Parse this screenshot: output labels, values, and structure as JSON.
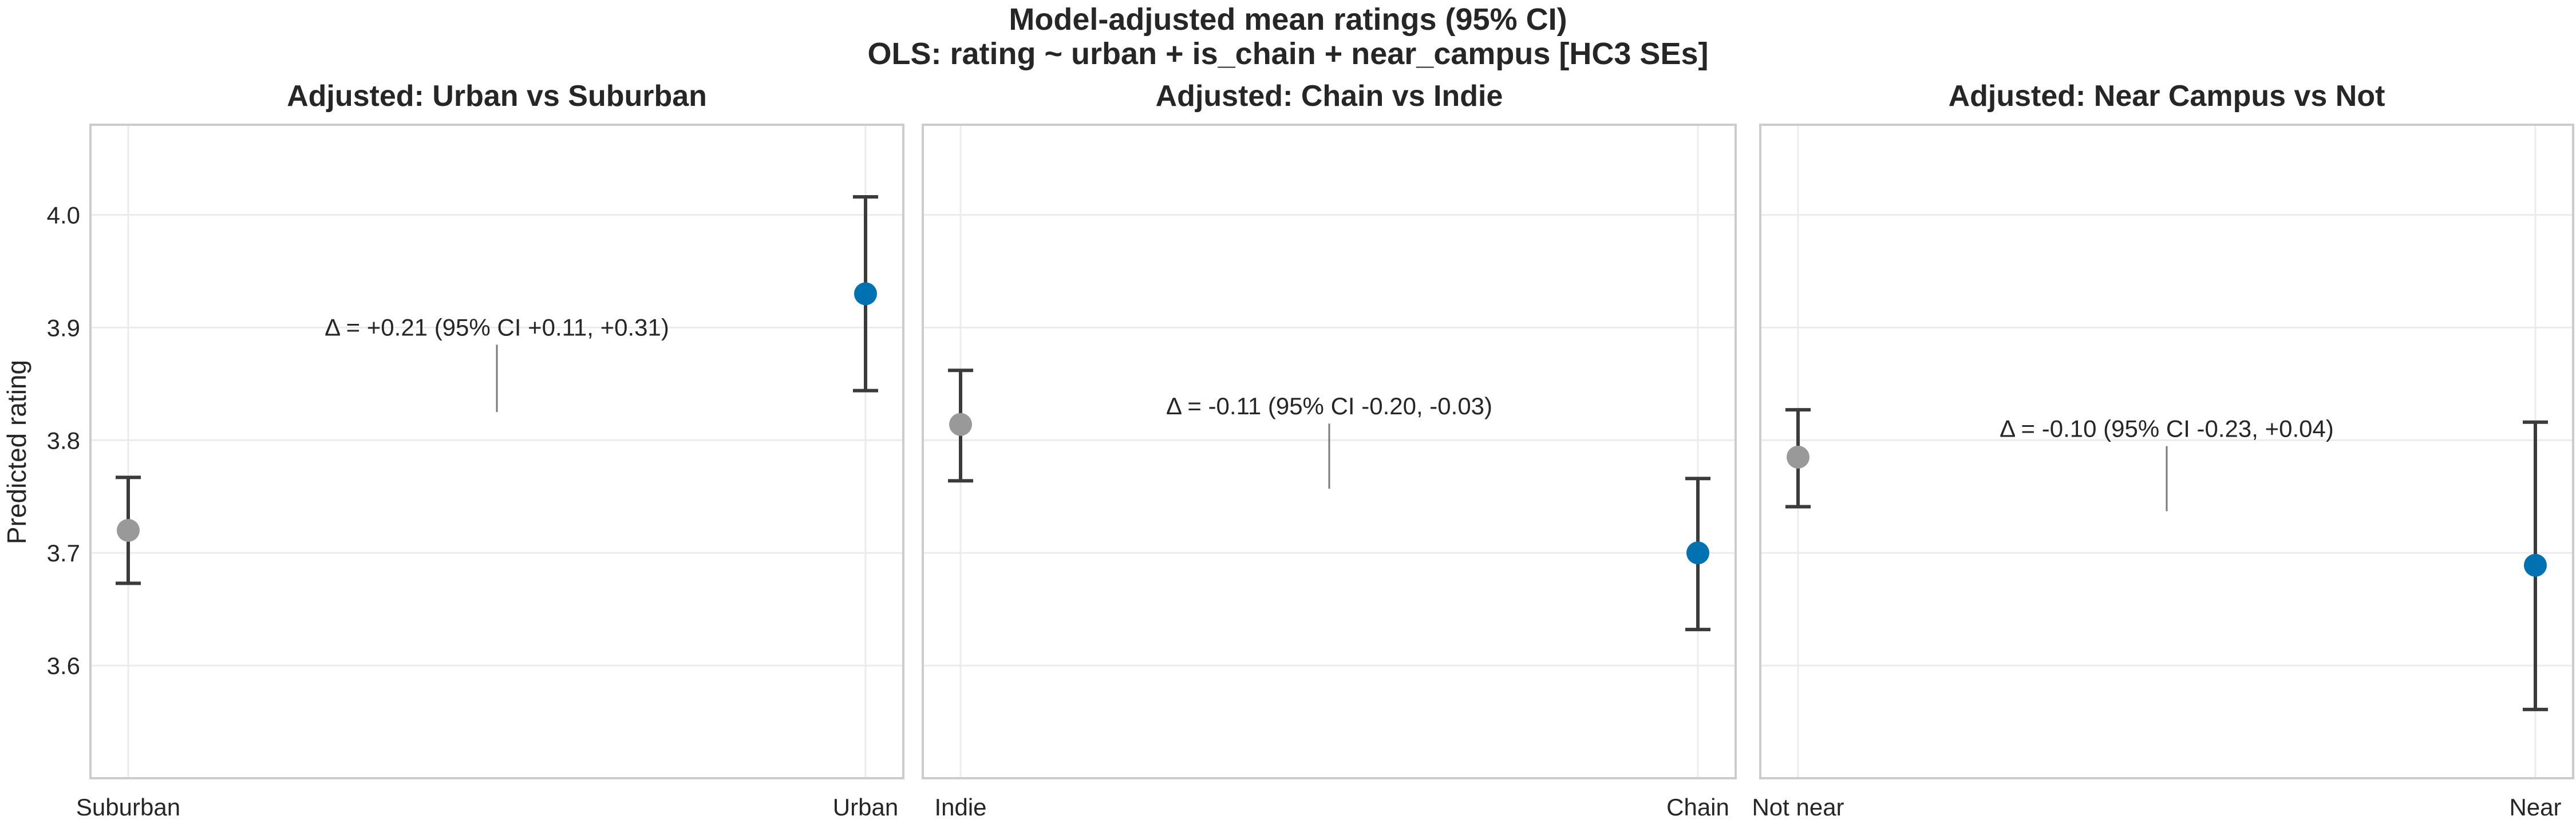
{
  "suptitle": {
    "line1": "Model-adjusted mean ratings (95% CI)",
    "line2": "OLS: rating ~ urban + is_chain + near_campus  [HC3 SEs]"
  },
  "chart_data": {
    "type": "scatter",
    "kind": "point estimates with 95% CI error bars",
    "shared_y": true,
    "ylabel": "Predicted rating",
    "ylim": [
      3.5,
      4.08
    ],
    "yticks": [
      3.6,
      3.7,
      3.8,
      3.9,
      4.0
    ],
    "grid": true,
    "colors": {
      "reference": "#999999",
      "highlight": "#0072b2",
      "errorbar": "#3b3b3b"
    },
    "panels": [
      {
        "title": "Adjusted: Urban vs Suburban",
        "categories": [
          "Suburban",
          "Urban"
        ],
        "estimates": [
          3.72,
          3.93
        ],
        "ci_low": [
          3.673,
          3.844
        ],
        "ci_high": [
          3.767,
          4.016
        ],
        "annotation": "Δ = +0.21 (95% CI +0.11, +0.31)",
        "annotation_y": 3.9
      },
      {
        "title": "Adjusted: Chain vs Indie",
        "categories": [
          "Indie",
          "Chain"
        ],
        "estimates": [
          3.814,
          3.7
        ],
        "ci_low": [
          3.764,
          3.632
        ],
        "ci_high": [
          3.862,
          3.766
        ],
        "annotation": "Δ = -0.11 (95% CI -0.20, -0.03)",
        "annotation_y": 3.83
      },
      {
        "title": "Adjusted: Near Campus vs Not",
        "categories": [
          "Not near",
          "Near"
        ],
        "estimates": [
          3.785,
          3.689
        ],
        "ci_low": [
          3.741,
          3.561
        ],
        "ci_high": [
          3.827,
          3.816
        ],
        "annotation": "Δ = -0.10 (95% CI -0.23, +0.04)",
        "annotation_y": 3.81
      }
    ]
  }
}
